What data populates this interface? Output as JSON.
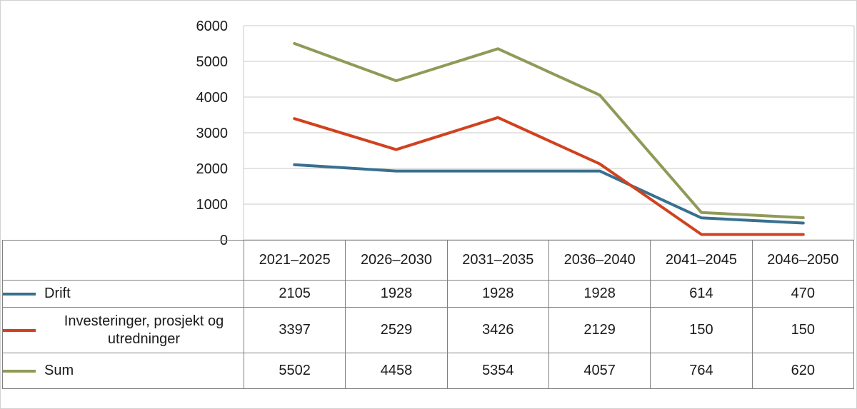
{
  "chart_data": {
    "type": "line",
    "title": "",
    "xlabel": "",
    "ylabel": "",
    "categories": [
      "2021–2025",
      "2026–2030",
      "2031–2035",
      "2036–2040",
      "2041–2045",
      "2046–2050"
    ],
    "series": [
      {
        "name": "Drift",
        "color": "#38708f",
        "values": [
          2105,
          1928,
          1928,
          1928,
          614,
          470
        ]
      },
      {
        "name": "Investeringer, prosjekt og utredninger",
        "color": "#d0421f",
        "values": [
          3397,
          2529,
          3426,
          2129,
          150,
          150
        ]
      },
      {
        "name": "Sum",
        "color": "#8f9a58",
        "values": [
          5502,
          4458,
          5354,
          4057,
          764,
          620
        ]
      }
    ],
    "ylim": [
      0,
      6000
    ],
    "ytick_step": 1000,
    "grid": "horizontal",
    "legend_position": "table-left"
  }
}
